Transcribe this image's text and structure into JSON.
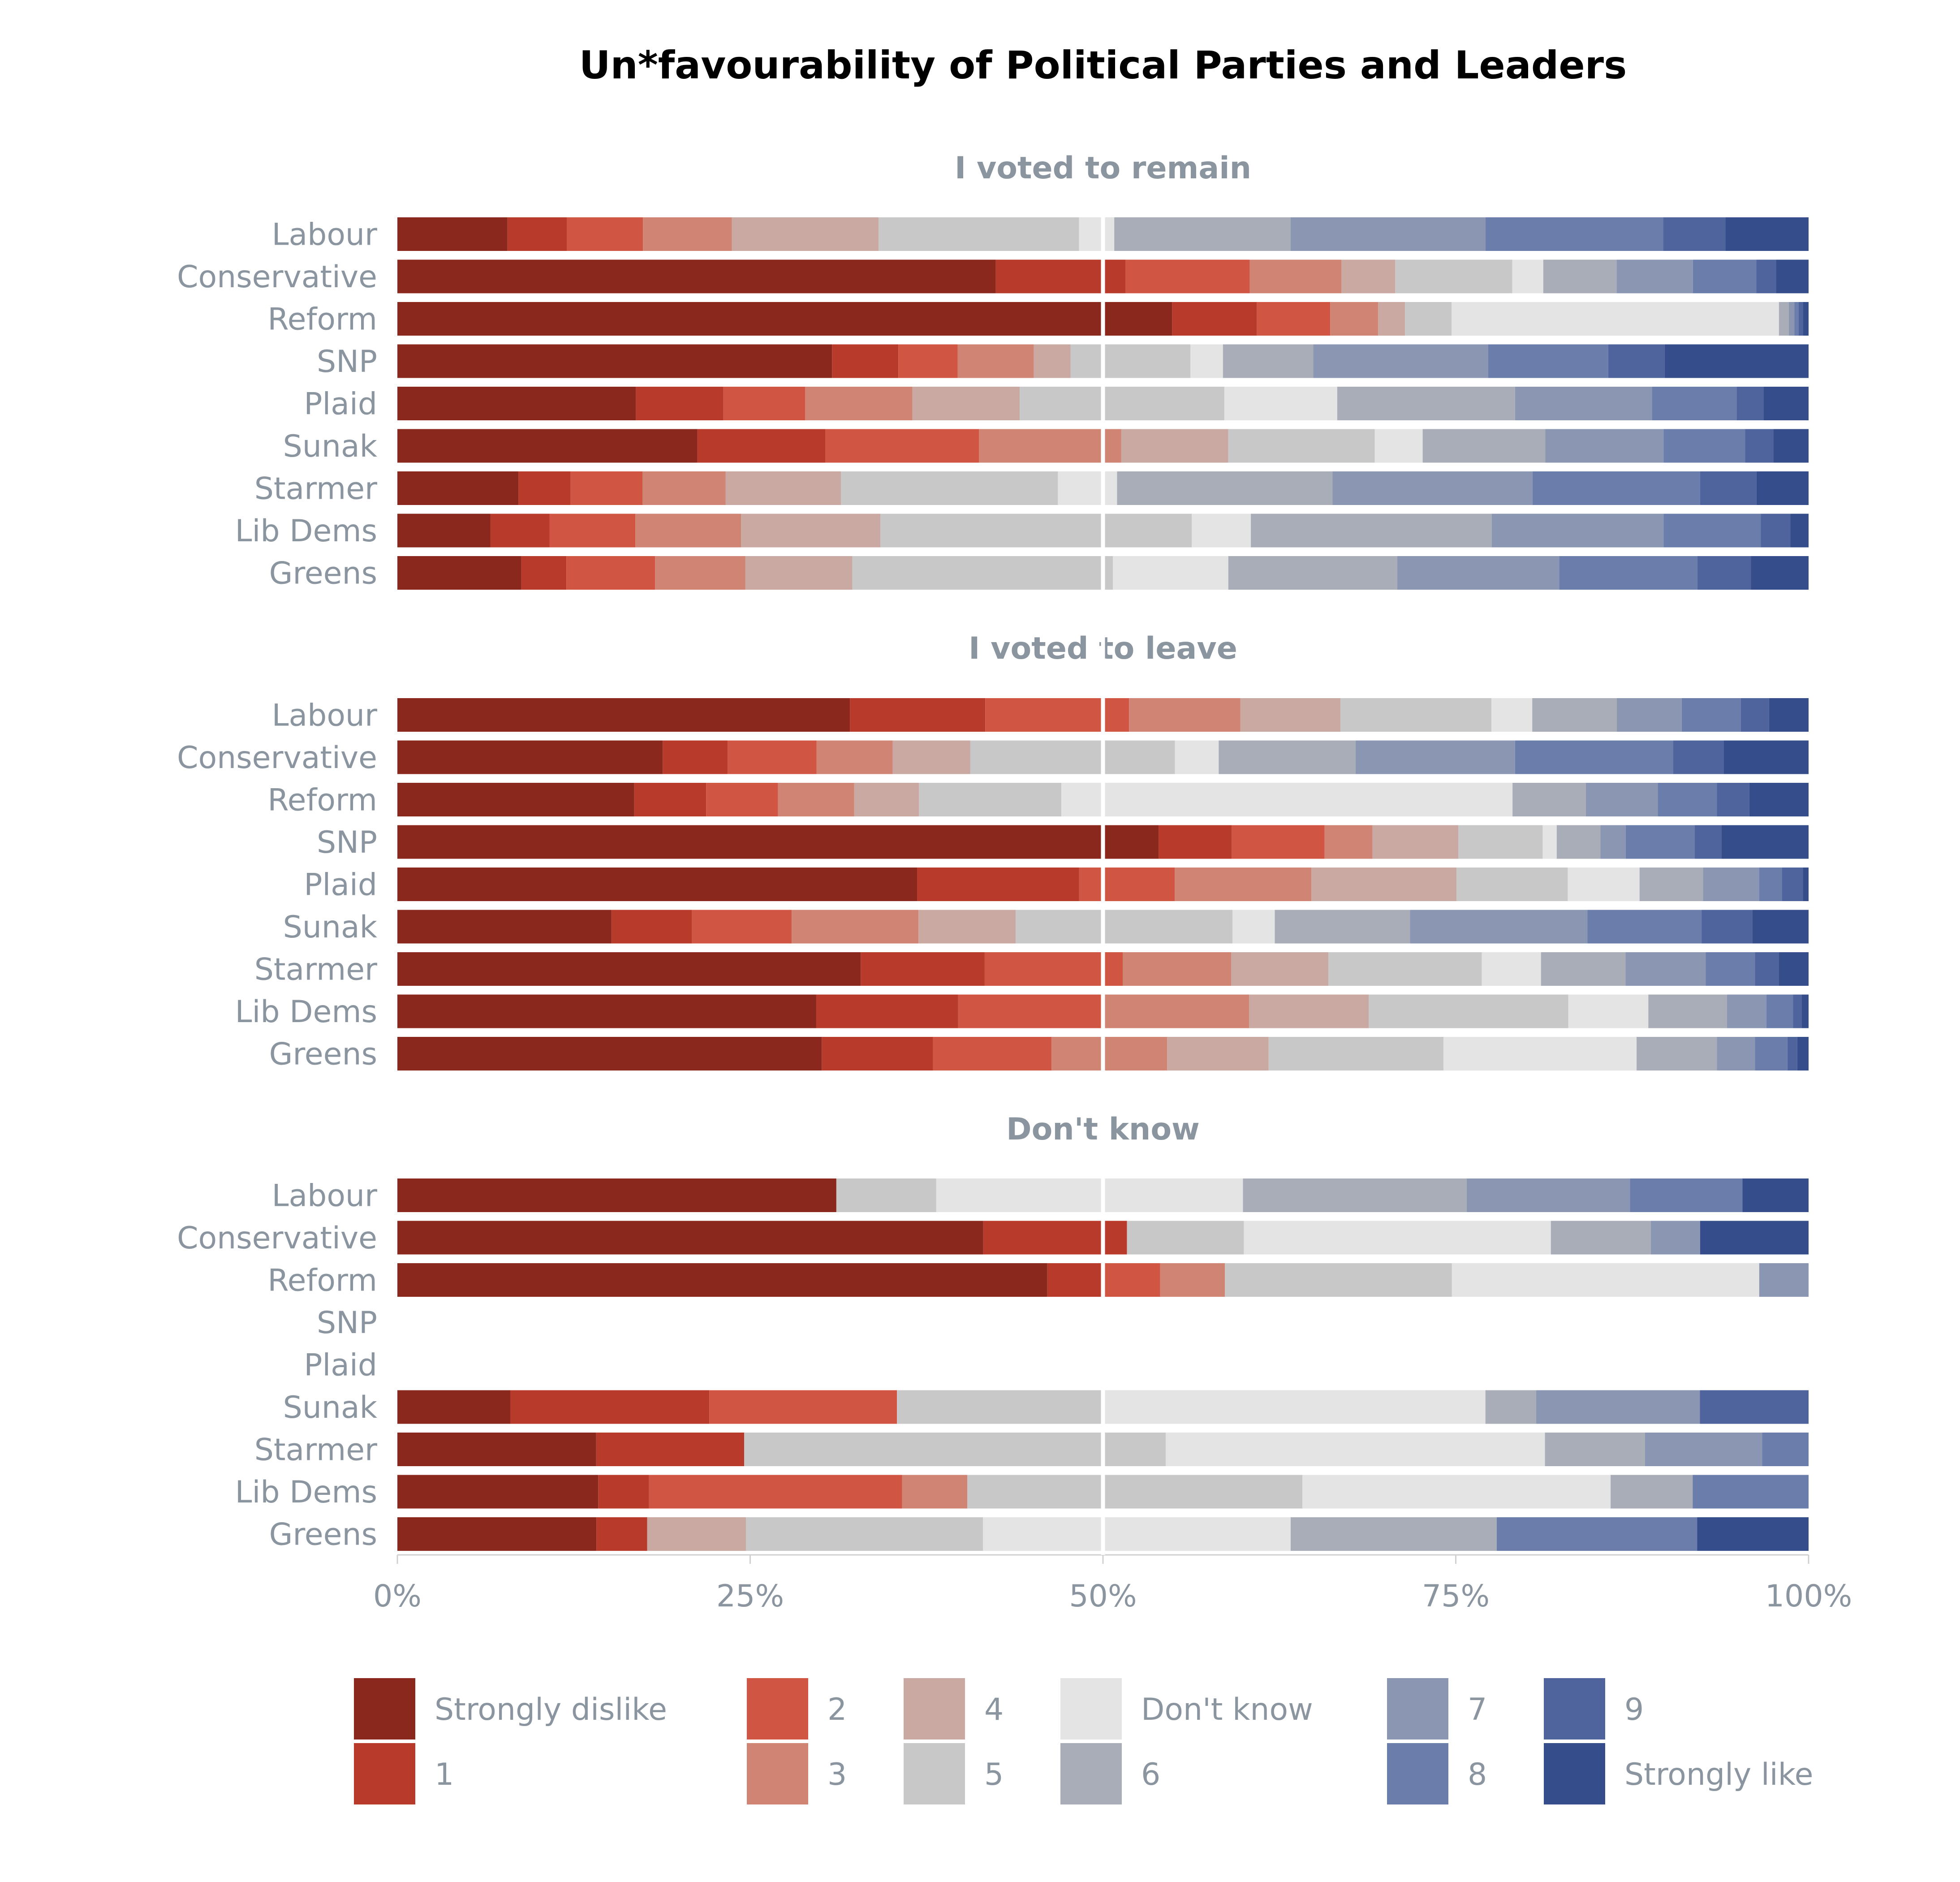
{
  "chart_data": {
    "type": "bar",
    "orientation": "horizontal",
    "stacked": true,
    "title": "Un*favourability of Political Parties and Leaders",
    "xlim": [
      0,
      100
    ],
    "x_ticks": [
      0,
      25,
      50,
      75,
      100
    ],
    "x_tick_labels": [
      "0%",
      "25%",
      "50%",
      "75%",
      "100%"
    ],
    "midline_at": 50,
    "legend_position": "bottom",
    "categories": [
      "Strongly dislike",
      "1",
      "2",
      "3",
      "4",
      "5",
      "Don't know",
      "6",
      "7",
      "8",
      "9",
      "Strongly like"
    ],
    "legend_order": [
      "Strongly dislike",
      "1",
      "2",
      "3",
      "4",
      "5",
      "Don't know",
      "6",
      "7",
      "8",
      "9",
      "Strongly like"
    ],
    "colors": {
      "Strongly dislike": "#8b281e",
      "1": "#b83a2b",
      "2": "#d05643",
      "3": "#d08474",
      "4": "#c9a9a1",
      "5": "#c8c8c8",
      "Don't know": "#e4e4e4",
      "6": "#a8adb8",
      "7": "#8b96b2",
      "8": "#6b7eab",
      "9": "#4f649c",
      "Strongly like": "#364d8b"
    },
    "panels": [
      {
        "title": "I voted to remain",
        "rows": [
          {
            "label": "Labour",
            "values": [
              7.8,
              4.2,
              5.4,
              6.3,
              10.4,
              14.2,
              2.5,
              12.5,
              13.8,
              12.6,
              4.4,
              5.9
            ]
          },
          {
            "label": "Conservative",
            "values": [
              42.4,
              9.2,
              8.8,
              6.5,
              3.8,
              8.3,
              2.2,
              5.2,
              5.4,
              4.5,
              1.4,
              2.3
            ]
          },
          {
            "label": "Reform",
            "values": [
              54.9,
              6.0,
              5.2,
              3.4,
              1.9,
              3.3,
              23.2,
              0.7,
              0.4,
              0.3,
              0.3,
              0.4
            ]
          },
          {
            "label": "SNP",
            "values": [
              30.8,
              4.7,
              4.2,
              5.4,
              2.6,
              8.5,
              2.3,
              6.4,
              12.4,
              8.5,
              4.0,
              10.2
            ]
          },
          {
            "label": "Plaid",
            "values": [
              16.9,
              6.2,
              5.8,
              7.6,
              7.6,
              14.5,
              8.0,
              12.6,
              9.7,
              6.0,
              1.9,
              3.2
            ]
          },
          {
            "label": "Sunak",
            "values": [
              21.3,
              9.1,
              10.9,
              10.1,
              7.6,
              10.4,
              3.4,
              8.7,
              8.4,
              5.8,
              2.0,
              2.5
            ]
          },
          {
            "label": "Starmer",
            "values": [
              8.6,
              3.7,
              5.1,
              5.9,
              8.2,
              15.4,
              4.2,
              15.3,
              14.2,
              11.9,
              4.0,
              3.7
            ]
          },
          {
            "label": "Lib Dems",
            "values": [
              6.6,
              4.2,
              6.1,
              7.5,
              9.9,
              22.1,
              4.2,
              17.1,
              12.2,
              6.9,
              2.1,
              1.3
            ]
          },
          {
            "label": "Greens",
            "values": [
              8.8,
              3.2,
              6.3,
              6.4,
              7.6,
              18.5,
              8.2,
              12.0,
              11.5,
              9.8,
              3.8,
              4.1
            ]
          }
        ]
      },
      {
        "title": "I voted to leave",
        "rows": [
          {
            "label": "Labour",
            "values": [
              32.1,
              9.6,
              10.2,
              7.9,
              7.1,
              10.7,
              2.9,
              6.0,
              4.6,
              4.2,
              2.0,
              2.8
            ]
          },
          {
            "label": "Conservative",
            "values": [
              18.8,
              4.6,
              6.3,
              5.4,
              5.5,
              14.5,
              3.1,
              9.7,
              11.3,
              11.2,
              3.6,
              6.0
            ]
          },
          {
            "label": "Reform",
            "values": [
              16.8,
              5.1,
              5.1,
              5.4,
              4.6,
              10.1,
              32.0,
              5.2,
              5.1,
              4.2,
              2.3,
              4.2
            ]
          },
          {
            "label": "SNP",
            "values": [
              54.1,
              5.2,
              6.6,
              3.4,
              6.1,
              6.0,
              1.0,
              3.1,
              1.8,
              4.9,
              1.9,
              6.2
            ]
          },
          {
            "label": "Plaid",
            "values": [
              36.9,
              11.5,
              6.8,
              9.7,
              10.3,
              7.9,
              5.1,
              4.5,
              4.0,
              1.6,
              1.5,
              0.4
            ]
          },
          {
            "label": "Sunak",
            "values": [
              15.2,
              5.7,
              7.1,
              9.0,
              6.9,
              15.4,
              3.0,
              9.6,
              12.6,
              8.1,
              3.6,
              4.0
            ]
          },
          {
            "label": "Starmer",
            "values": [
              32.9,
              8.8,
              9.8,
              7.7,
              6.9,
              10.9,
              4.2,
              6.0,
              5.7,
              3.5,
              1.7,
              2.1
            ]
          },
          {
            "label": "Lib Dems",
            "values": [
              29.8,
              10.1,
              10.4,
              10.3,
              8.5,
              14.2,
              5.7,
              5.6,
              2.8,
              1.9,
              0.6,
              0.5
            ]
          },
          {
            "label": "Greens",
            "values": [
              30.1,
              7.9,
              8.4,
              8.2,
              7.2,
              12.4,
              13.7,
              5.7,
              2.7,
              2.3,
              0.7,
              0.8
            ]
          }
        ]
      },
      {
        "title": "Don't know",
        "rows": [
          {
            "label": "Labour",
            "values": [
              31.2,
              0,
              0,
              0,
              0,
              7.1,
              21.8,
              15.9,
              11.6,
              8.0,
              0,
              4.7
            ]
          },
          {
            "label": "Conservative",
            "values": [
              41.6,
              10.2,
              0,
              0,
              0,
              8.3,
              21.8,
              7.1,
              3.5,
              0,
              0,
              7.7
            ]
          },
          {
            "label": "Reform",
            "values": [
              46.1,
              4.0,
              4.0,
              4.6,
              0,
              16.1,
              21.8,
              0,
              3.5,
              0,
              0,
              0
            ]
          },
          {
            "label": "SNP",
            "values": []
          },
          {
            "label": "Plaid",
            "values": []
          },
          {
            "label": "Sunak",
            "values": [
              8.0,
              14.1,
              13.3,
              0,
              0,
              14.5,
              27.2,
              3.6,
              11.6,
              0,
              7.7,
              0
            ]
          },
          {
            "label": "Starmer",
            "values": [
              14.1,
              10.5,
              0,
              0,
              0,
              29.9,
              26.9,
              7.1,
              8.3,
              3.3,
              0,
              0
            ]
          },
          {
            "label": "Lib Dems",
            "values": [
              14.2,
              3.6,
              17.9,
              4.6,
              0,
              23.7,
              21.8,
              5.8,
              0,
              8.2,
              0,
              0
            ]
          },
          {
            "label": "Greens",
            "values": [
              14.1,
              3.6,
              0,
              0,
              7.0,
              16.8,
              21.8,
              14.6,
              0,
              14.2,
              0,
              7.9
            ]
          }
        ]
      }
    ]
  }
}
